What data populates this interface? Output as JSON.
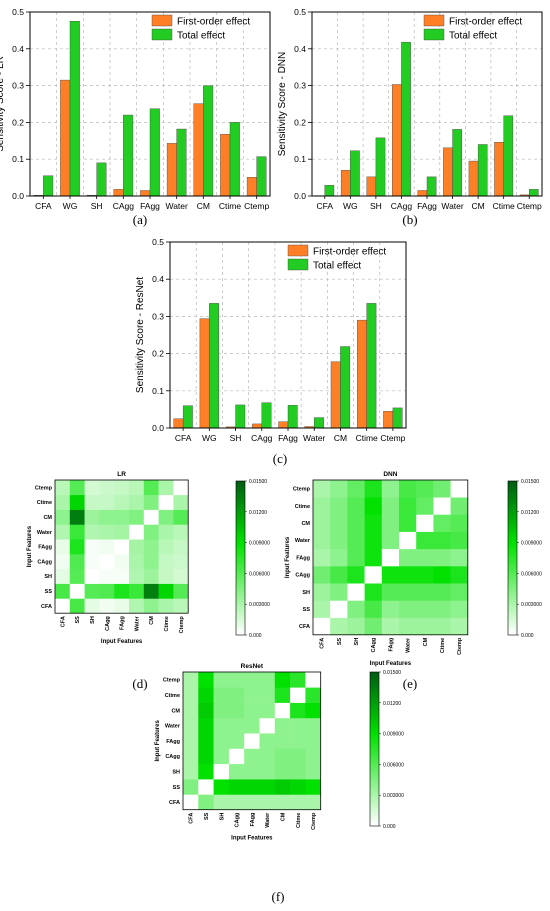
{
  "chart_data": [
    {
      "id": "a",
      "type": "bar",
      "panel_label": "(a)",
      "ylabel": "Sensitivity Score - LR",
      "ylim": [
        0,
        0.5
      ],
      "yticks": [
        "0.0",
        "0.1",
        "0.2",
        "0.3",
        "0.4",
        "0.5"
      ],
      "categories": [
        "CFA",
        "WG",
        "SH",
        "CAgg",
        "FAgg",
        "Water",
        "CM",
        "Ctime",
        "Ctemp"
      ],
      "series": [
        {
          "name": "First-order effect",
          "color": "#ff7f27",
          "values": [
            0.002,
            0.315,
            0.002,
            0.018,
            0.015,
            0.143,
            0.251,
            0.168,
            0.051
          ]
        },
        {
          "name": "Total effect",
          "color": "#22cc22",
          "values": [
            0.055,
            0.475,
            0.09,
            0.22,
            0.237,
            0.182,
            0.3,
            0.2,
            0.107
          ]
        }
      ],
      "legend": "top-right",
      "grid": true
    },
    {
      "id": "b",
      "type": "bar",
      "panel_label": "(b)",
      "ylabel": "Sensitivity Score - DNN",
      "ylim": [
        0,
        0.5
      ],
      "yticks": [
        "0.0",
        "0.1",
        "0.2",
        "0.3",
        "0.4",
        "0.5"
      ],
      "categories": [
        "CFA",
        "WG",
        "SH",
        "CAgg",
        "FAgg",
        "Water",
        "CM",
        "Ctime",
        "Ctemp"
      ],
      "series": [
        {
          "name": "First-order effect",
          "color": "#ff7f27",
          "values": [
            0.001,
            0.07,
            0.052,
            0.303,
            0.015,
            0.131,
            0.095,
            0.146,
            0.003
          ]
        },
        {
          "name": "Total effect",
          "color": "#22cc22",
          "values": [
            0.029,
            0.123,
            0.158,
            0.418,
            0.052,
            0.181,
            0.14,
            0.218,
            0.018
          ]
        }
      ],
      "legend": "top-right",
      "grid": true
    },
    {
      "id": "c",
      "type": "bar",
      "panel_label": "(c)",
      "ylabel": "Sensitivity Score - ResNet",
      "ylim": [
        0,
        0.5
      ],
      "yticks": [
        "0.0",
        "0.1",
        "0.2",
        "0.3",
        "0.4",
        "0.5"
      ],
      "categories": [
        "CFA",
        "WG",
        "SH",
        "CAgg",
        "FAgg",
        "Water",
        "CM",
        "Ctime",
        "Ctemp"
      ],
      "series": [
        {
          "name": "First-order effect",
          "color": "#ff7f27",
          "values": [
            0.025,
            0.294,
            0.003,
            0.011,
            0.017,
            0.004,
            0.178,
            0.29,
            0.045
          ]
        },
        {
          "name": "Total effect",
          "color": "#22cc22",
          "values": [
            0.06,
            0.335,
            0.062,
            0.068,
            0.061,
            0.028,
            0.219,
            0.335,
            0.054
          ]
        }
      ],
      "legend": "top-right",
      "grid": true
    },
    {
      "id": "d",
      "type": "heatmap",
      "panel_label": "(d)",
      "title": "LR",
      "xlabel": "Input Features",
      "ylabel": "Input Features",
      "x_labels": [
        "CFA",
        "SS",
        "SH",
        "CAgg",
        "FAgg",
        "Water",
        "CM",
        "Ctime",
        "Ctemp"
      ],
      "y_labels": [
        "CFA",
        "SS",
        "SH",
        "CAgg",
        "FAgg",
        "Water",
        "CM",
        "Ctime",
        "Ctemp"
      ],
      "colorbar_ticks": [
        "0.000",
        "0.003000",
        "0.006000",
        "0.009000",
        "0.01200",
        "0.01500"
      ],
      "vmax": 0.015,
      "values": [
        [
          0.0,
          0.0065,
          0.001,
          0.0005,
          0.0008,
          0.0028,
          0.004,
          0.003,
          0.0025
        ],
        [
          0.0065,
          0.0,
          0.006,
          0.0062,
          0.008,
          0.007,
          0.0135,
          0.0095,
          0.006
        ],
        [
          0.001,
          0.006,
          0.0,
          0.0003,
          0.0003,
          0.0028,
          0.0035,
          0.002,
          0.0015
        ],
        [
          0.0005,
          0.0062,
          0.0003,
          0.0,
          0.0005,
          0.003,
          0.004,
          0.002,
          0.0018
        ],
        [
          0.0008,
          0.008,
          0.0003,
          0.0005,
          0.0,
          0.0032,
          0.004,
          0.0025,
          0.002
        ],
        [
          0.0028,
          0.007,
          0.0028,
          0.003,
          0.0032,
          0.0,
          0.0045,
          0.003,
          0.0025
        ],
        [
          0.004,
          0.0135,
          0.0035,
          0.004,
          0.004,
          0.0045,
          0.0,
          0.0045,
          0.006
        ],
        [
          0.003,
          0.0095,
          0.002,
          0.002,
          0.0025,
          0.003,
          0.0045,
          0.0,
          0.003
        ],
        [
          0.0025,
          0.006,
          0.0015,
          0.0018,
          0.002,
          0.0025,
          0.006,
          0.003,
          0.0
        ]
      ]
    },
    {
      "id": "e",
      "type": "heatmap",
      "panel_label": "(e)",
      "title": "DNN",
      "xlabel": "Input Features",
      "ylabel": "Input Features",
      "x_labels": [
        "CFA",
        "SS",
        "SH",
        "CAgg",
        "FAgg",
        "Water",
        "CM",
        "Ctime",
        "Ctemp"
      ],
      "y_labels": [
        "CFA",
        "SS",
        "SH",
        "CAgg",
        "FAgg",
        "Water",
        "CM",
        "Ctime",
        "Ctemp"
      ],
      "colorbar_ticks": [
        "0.000",
        "0.003000",
        "0.006000",
        "0.009000",
        "0.01200",
        "0.01500"
      ],
      "vmax": 0.015,
      "values": [
        [
          0.0,
          0.003,
          0.0035,
          0.005,
          0.003,
          0.0035,
          0.0035,
          0.0035,
          0.003
        ],
        [
          0.003,
          0.0,
          0.0045,
          0.0065,
          0.004,
          0.0045,
          0.0045,
          0.0045,
          0.004
        ],
        [
          0.0035,
          0.0045,
          0.0,
          0.008,
          0.006,
          0.006,
          0.006,
          0.006,
          0.0055
        ],
        [
          0.005,
          0.0065,
          0.008,
          0.0,
          0.0085,
          0.0085,
          0.0085,
          0.009,
          0.008
        ],
        [
          0.003,
          0.004,
          0.006,
          0.0085,
          0.0,
          0.0045,
          0.0045,
          0.0045,
          0.004
        ],
        [
          0.0035,
          0.0045,
          0.006,
          0.0085,
          0.0045,
          0.0,
          0.007,
          0.007,
          0.0065
        ],
        [
          0.0035,
          0.0045,
          0.006,
          0.0085,
          0.0045,
          0.007,
          0.0,
          0.0055,
          0.006
        ],
        [
          0.0035,
          0.0045,
          0.006,
          0.009,
          0.0045,
          0.007,
          0.0055,
          0.0,
          0.005
        ],
        [
          0.003,
          0.004,
          0.0055,
          0.008,
          0.004,
          0.0065,
          0.006,
          0.005,
          0.0
        ]
      ]
    },
    {
      "id": "f",
      "type": "heatmap",
      "panel_label": "(f)",
      "title": "ResNet",
      "xlabel": "Input Features",
      "ylabel": "Input Features",
      "x_labels": [
        "CFA",
        "SS",
        "SH",
        "CAgg",
        "FAgg",
        "Water",
        "CM",
        "Ctime",
        "Ctemp"
      ],
      "y_labels": [
        "CFA",
        "SS",
        "SH",
        "CAgg",
        "FAgg",
        "Water",
        "CM",
        "Ctime",
        "Ctemp"
      ],
      "colorbar_ticks": [
        "0.000",
        "0.003000",
        "0.006000",
        "0.009000",
        "0.01200",
        "0.01500"
      ],
      "vmax": 0.015,
      "values": [
        [
          0.0,
          0.0045,
          0.003,
          0.003,
          0.003,
          0.003,
          0.003,
          0.003,
          0.003
        ],
        [
          0.0045,
          0.0,
          0.009,
          0.0095,
          0.0095,
          0.0095,
          0.01,
          0.0095,
          0.009
        ],
        [
          0.003,
          0.009,
          0.0,
          0.004,
          0.004,
          0.004,
          0.0045,
          0.0045,
          0.004
        ],
        [
          0.003,
          0.0095,
          0.004,
          0.0,
          0.004,
          0.004,
          0.0045,
          0.0045,
          0.004
        ],
        [
          0.003,
          0.0095,
          0.004,
          0.004,
          0.0,
          0.004,
          0.004,
          0.004,
          0.004
        ],
        [
          0.003,
          0.0095,
          0.004,
          0.004,
          0.004,
          0.0,
          0.004,
          0.004,
          0.004
        ],
        [
          0.003,
          0.01,
          0.0045,
          0.0045,
          0.004,
          0.004,
          0.0,
          0.008,
          0.009
        ],
        [
          0.003,
          0.0095,
          0.0045,
          0.0045,
          0.004,
          0.004,
          0.008,
          0.0,
          0.0075
        ],
        [
          0.003,
          0.009,
          0.004,
          0.004,
          0.004,
          0.004,
          0.009,
          0.0075,
          0.0
        ]
      ]
    }
  ]
}
